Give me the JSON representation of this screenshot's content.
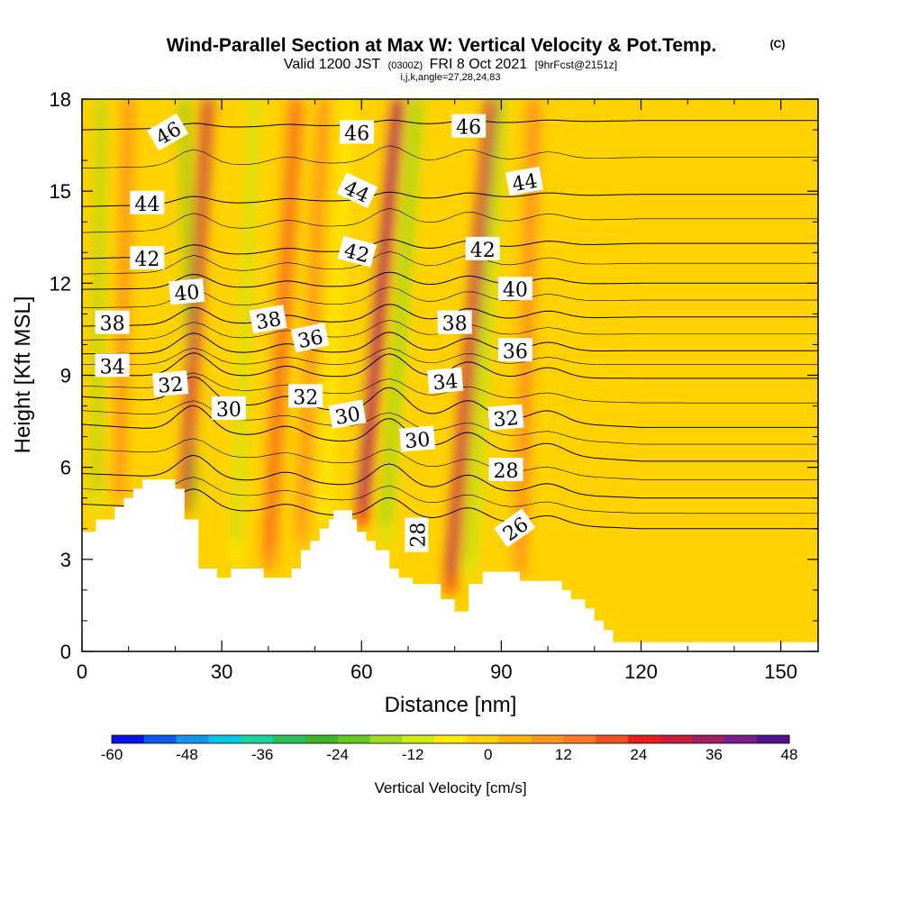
{
  "header": {
    "title": "Wind-Parallel Section at Max W: Vertical Velocity & Pot.Temp.",
    "copyright": "(C)",
    "valid": "Valid 1200 JST",
    "utc": "(0300Z)",
    "date": "FRI 8 Oct 2021",
    "fcst": "[9hrFcst@2151z]",
    "indices": "i,j,k,angle=27,28,24,83"
  },
  "colorbar": {
    "label": "Vertical Velocity [cm/s]",
    "ticks": [
      "-60",
      "-48",
      "-36",
      "-24",
      "-12",
      "0",
      "12",
      "24",
      "36",
      "48"
    ],
    "colors": [
      "#0a14e6",
      "#0f5af0",
      "#1496f0",
      "#00c8e6",
      "#1ad29b",
      "#28be5a",
      "#3cb428",
      "#64c81e",
      "#a0dc1e",
      "#d2eb14",
      "#ffeb00",
      "#ffd200",
      "#ffb400",
      "#ff961e",
      "#ff7828",
      "#f0501e",
      "#e61e1e",
      "#c81e3c",
      "#a01e64",
      "#781e8c",
      "#501496"
    ]
  },
  "chart_data": {
    "type": "heatmap",
    "xlabel": "Distance [nm]",
    "ylabel": "Height [Kft MSL]",
    "xlim": [
      0,
      158
    ],
    "ylim": [
      0,
      18
    ],
    "xticks": [
      "0",
      "30",
      "60",
      "90",
      "120",
      "150"
    ],
    "yticks": [
      "0",
      "3",
      "6",
      "9",
      "12",
      "15",
      "18"
    ],
    "terrain_kft": [
      [
        0,
        3.9
      ],
      [
        3,
        3.9
      ],
      [
        3,
        4.3
      ],
      [
        7,
        4.3
      ],
      [
        7,
        4.7
      ],
      [
        9,
        4.7
      ],
      [
        9,
        5.0
      ],
      [
        11,
        5.0
      ],
      [
        11,
        5.3
      ],
      [
        13,
        5.3
      ],
      [
        13,
        5.6
      ],
      [
        20,
        5.6
      ],
      [
        20,
        5.3
      ],
      [
        22,
        5.3
      ],
      [
        22,
        4.3
      ],
      [
        25,
        4.3
      ],
      [
        25,
        2.7
      ],
      [
        29,
        2.7
      ],
      [
        29,
        2.4
      ],
      [
        32,
        2.4
      ],
      [
        32,
        2.7
      ],
      [
        39,
        2.7
      ],
      [
        39,
        2.4
      ],
      [
        45,
        2.4
      ],
      [
        45,
        2.7
      ],
      [
        47,
        2.7
      ],
      [
        47,
        3.3
      ],
      [
        49,
        3.3
      ],
      [
        49,
        3.6
      ],
      [
        51,
        3.6
      ],
      [
        51,
        4.0
      ],
      [
        53,
        4.0
      ],
      [
        53,
        4.3
      ],
      [
        54,
        4.3
      ],
      [
        54,
        4.6
      ],
      [
        58,
        4.6
      ],
      [
        58,
        4.3
      ],
      [
        59,
        4.3
      ],
      [
        59,
        3.9
      ],
      [
        61,
        3.9
      ],
      [
        61,
        3.6
      ],
      [
        63,
        3.6
      ],
      [
        63,
        3.3
      ],
      [
        66,
        3.3
      ],
      [
        66,
        2.7
      ],
      [
        68,
        2.7
      ],
      [
        68,
        2.4
      ],
      [
        71,
        2.4
      ],
      [
        71,
        2.2
      ],
      [
        77,
        2.2
      ],
      [
        77,
        1.7
      ],
      [
        80,
        1.7
      ],
      [
        80,
        1.3
      ],
      [
        83,
        1.3
      ],
      [
        83,
        2.2
      ],
      [
        86,
        2.2
      ],
      [
        86,
        2.6
      ],
      [
        94,
        2.6
      ],
      [
        94,
        2.3
      ],
      [
        103,
        2.3
      ],
      [
        103,
        2.0
      ],
      [
        105,
        2.0
      ],
      [
        105,
        1.7
      ],
      [
        108,
        1.7
      ],
      [
        108,
        1.4
      ],
      [
        110,
        1.4
      ],
      [
        110,
        1.0
      ],
      [
        112,
        1.0
      ],
      [
        112,
        0.7
      ],
      [
        114,
        0.7
      ],
      [
        114,
        0.3
      ],
      [
        158,
        0.3
      ]
    ],
    "updrafts": [
      {
        "x0": 22,
        "x1": 27,
        "w": 34,
        "width": 2.2
      },
      {
        "x0": 40,
        "x1": 46,
        "w": 18,
        "width": 3.0
      },
      {
        "x0": 60,
        "x1": 68,
        "w": 44,
        "width": 2.2
      },
      {
        "x0": 79,
        "x1": 88,
        "w": 36,
        "width": 2.6
      },
      {
        "x0": 94,
        "x1": 97,
        "w": 14,
        "width": 2.4
      },
      {
        "x0": 47,
        "x1": 52,
        "w": 14,
        "width": 2.0
      },
      {
        "x0": 8,
        "x1": 10,
        "w": 14,
        "width": 2.0
      }
    ],
    "downdrafts": [
      {
        "x0": 3,
        "x1": 4,
        "w": -24,
        "width": 1.6
      },
      {
        "x0": 33,
        "x1": 37,
        "w": -14,
        "width": 2.2
      },
      {
        "x0": 65,
        "x1": 72,
        "w": -20,
        "width": 2.3
      },
      {
        "x0": 52,
        "x1": 57,
        "w": -8,
        "width": 2.0
      },
      {
        "x0": 83,
        "x1": 90,
        "w": -18,
        "width": 2.2
      },
      {
        "x0": 24,
        "x1": 22,
        "w": -26,
        "width": 1.4
      }
    ],
    "theta_isentropes": [
      {
        "theta": 26,
        "y_far": 4.0,
        "y_near": 4.8
      },
      {
        "theta": 28,
        "y_far": 5.0,
        "y_near": 5.8
      },
      {
        "theta": 30,
        "y_far": 6.2,
        "y_near": 7.4
      },
      {
        "theta": 32,
        "y_far": 7.3,
        "y_near": 8.3
      },
      {
        "theta": 34,
        "y_far": 8.9,
        "y_near": 9.0
      },
      {
        "theta": 36,
        "y_far": 9.8,
        "y_near": 9.7
      },
      {
        "theta": 38,
        "y_far": 10.9,
        "y_near": 10.6
      },
      {
        "theta": 40,
        "y_far": 12.0,
        "y_near": 11.8
      },
      {
        "theta": 42,
        "y_far": 13.3,
        "y_near": 12.8
      },
      {
        "theta": 44,
        "y_far": 14.9,
        "y_near": 14.5
      },
      {
        "theta": 46,
        "y_far": 17.3,
        "y_near": 17.0
      }
    ],
    "contour_labels": [
      {
        "text": "46",
        "x": 18.5,
        "y": 16.9,
        "rot": -30
      },
      {
        "text": "46",
        "x": 59,
        "y": 16.9,
        "rot": 0
      },
      {
        "text": "46",
        "x": 83,
        "y": 17.1,
        "rot": 0
      },
      {
        "text": "44",
        "x": 14,
        "y": 14.6,
        "rot": 0
      },
      {
        "text": "44",
        "x": 59,
        "y": 15.0,
        "rot": 25
      },
      {
        "text": "44",
        "x": 95,
        "y": 15.3,
        "rot": -10
      },
      {
        "text": "42",
        "x": 14,
        "y": 12.8,
        "rot": 0
      },
      {
        "text": "42",
        "x": 59,
        "y": 13.0,
        "rot": 15
      },
      {
        "text": "42",
        "x": 86,
        "y": 13.1,
        "rot": 0
      },
      {
        "text": "40",
        "x": 22.5,
        "y": 11.7,
        "rot": -5
      },
      {
        "text": "40",
        "x": 93,
        "y": 11.8,
        "rot": 0
      },
      {
        "text": "38",
        "x": 6.5,
        "y": 10.7,
        "rot": 0
      },
      {
        "text": "38",
        "x": 40,
        "y": 10.8,
        "rot": -10
      },
      {
        "text": "38",
        "x": 80,
        "y": 10.7,
        "rot": 0
      },
      {
        "text": "36",
        "x": 49,
        "y": 10.2,
        "rot": -12
      },
      {
        "text": "36",
        "x": 93,
        "y": 9.8,
        "rot": 0
      },
      {
        "text": "34",
        "x": 6.5,
        "y": 9.3,
        "rot": 0
      },
      {
        "text": "34",
        "x": 78,
        "y": 8.8,
        "rot": -5
      },
      {
        "text": "32",
        "x": 19,
        "y": 8.7,
        "rot": -5
      },
      {
        "text": "32",
        "x": 48,
        "y": 8.3,
        "rot": 0
      },
      {
        "text": "32",
        "x": 91,
        "y": 7.6,
        "rot": -5
      },
      {
        "text": "30",
        "x": 31.5,
        "y": 7.9,
        "rot": 0
      },
      {
        "text": "30",
        "x": 57,
        "y": 7.7,
        "rot": -10
      },
      {
        "text": "30",
        "x": 72,
        "y": 6.9,
        "rot": -5
      },
      {
        "text": "28",
        "x": 72,
        "y": 3.8,
        "rot": -90
      },
      {
        "text": "28",
        "x": 91,
        "y": 5.9,
        "rot": 0
      },
      {
        "text": "26",
        "x": 93,
        "y": 4.0,
        "rot": -35
      }
    ]
  }
}
